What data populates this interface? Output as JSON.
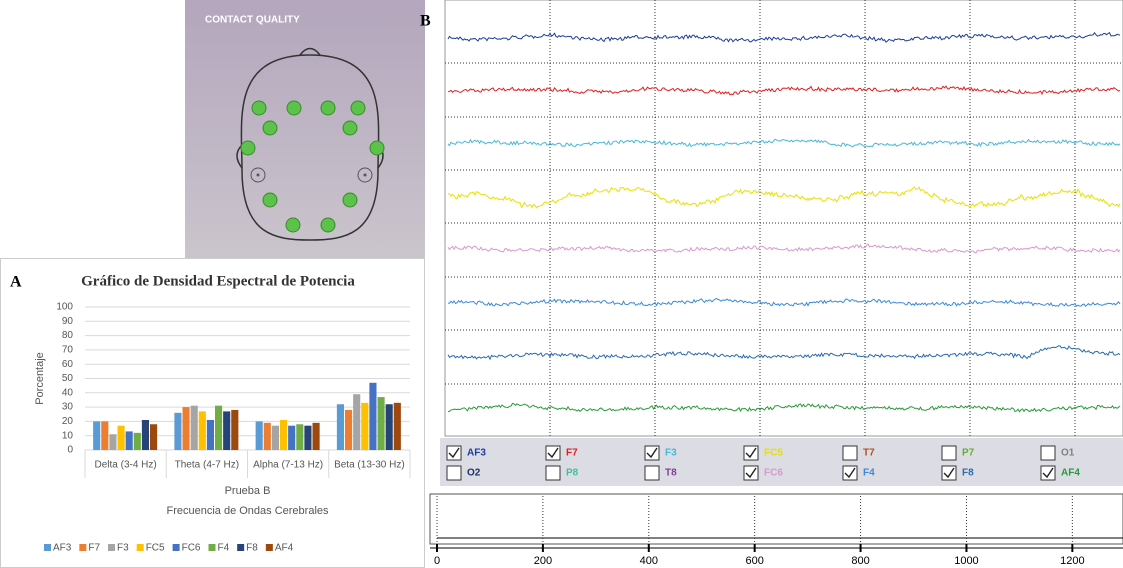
{
  "panel_labels": {
    "a": "A",
    "b": "B"
  },
  "contact_quality": {
    "title": "CONTACT QUALITY"
  },
  "channels": [
    {
      "name": "AF3",
      "color": "#1f3c9c",
      "checked": true
    },
    {
      "name": "F7",
      "color": "#e02020",
      "checked": true
    },
    {
      "name": "F3",
      "color": "#48b8d8",
      "checked": true
    },
    {
      "name": "FC5",
      "color": "#e8e000",
      "checked": true
    },
    {
      "name": "T7",
      "color": "#b05020",
      "checked": false
    },
    {
      "name": "P7",
      "color": "#60b030",
      "checked": false
    },
    {
      "name": "O1",
      "color": "#808080",
      "checked": false
    },
    {
      "name": "O2",
      "color": "#20306a",
      "checked": false
    },
    {
      "name": "P8",
      "color": "#40c0a0",
      "checked": false
    },
    {
      "name": "T8",
      "color": "#804090",
      "checked": false
    },
    {
      "name": "FC6",
      "color": "#d898d0",
      "checked": true
    },
    {
      "name": "F4",
      "color": "#3a8ad8",
      "checked": true
    },
    {
      "name": "F8",
      "color": "#2a6ab0",
      "checked": true
    },
    {
      "name": "AF4",
      "color": "#2a9a3a",
      "checked": true
    }
  ],
  "timeline": {
    "xlim": [
      0,
      1290
    ],
    "xticks": [
      0,
      200,
      400,
      600,
      800,
      1000,
      1200
    ]
  },
  "chart_data": {
    "type": "bar",
    "title": "Gráfico de Densidad Espectral de Potencia",
    "ylabel": "Porcentaje",
    "xgroup_label": "Prueba B",
    "xlabel": "Frecuencia de Ondas Cerebrales",
    "categories": [
      "Delta (3-4 Hz)",
      "Theta (4-7 Hz)",
      "Alpha (7-13 Hz)",
      "Beta (13-30 Hz)"
    ],
    "series": [
      {
        "name": "AF3",
        "color": "#5b9bd5",
        "values": [
          20,
          26,
          20,
          32
        ]
      },
      {
        "name": "F7",
        "color": "#ed7d31",
        "values": [
          20,
          30,
          19,
          28
        ]
      },
      {
        "name": "F3",
        "color": "#a5a5a5",
        "values": [
          11,
          31,
          17,
          39
        ]
      },
      {
        "name": "FC5",
        "color": "#ffc000",
        "values": [
          17,
          27,
          21,
          33
        ]
      },
      {
        "name": "FC6",
        "color": "#4472c4",
        "values": [
          13,
          21,
          17,
          47
        ]
      },
      {
        "name": "F4",
        "color": "#70ad47",
        "values": [
          12,
          31,
          18,
          37
        ]
      },
      {
        "name": "F8",
        "color": "#264478",
        "values": [
          21,
          27,
          17,
          32
        ]
      },
      {
        "name": "AF4",
        "color": "#9e480e",
        "values": [
          18,
          28,
          19,
          33
        ]
      }
    ],
    "ylim": [
      0,
      100
    ],
    "yticks": [
      0,
      10,
      20,
      30,
      40,
      50,
      60,
      70,
      80,
      90,
      100
    ],
    "grid": true
  }
}
